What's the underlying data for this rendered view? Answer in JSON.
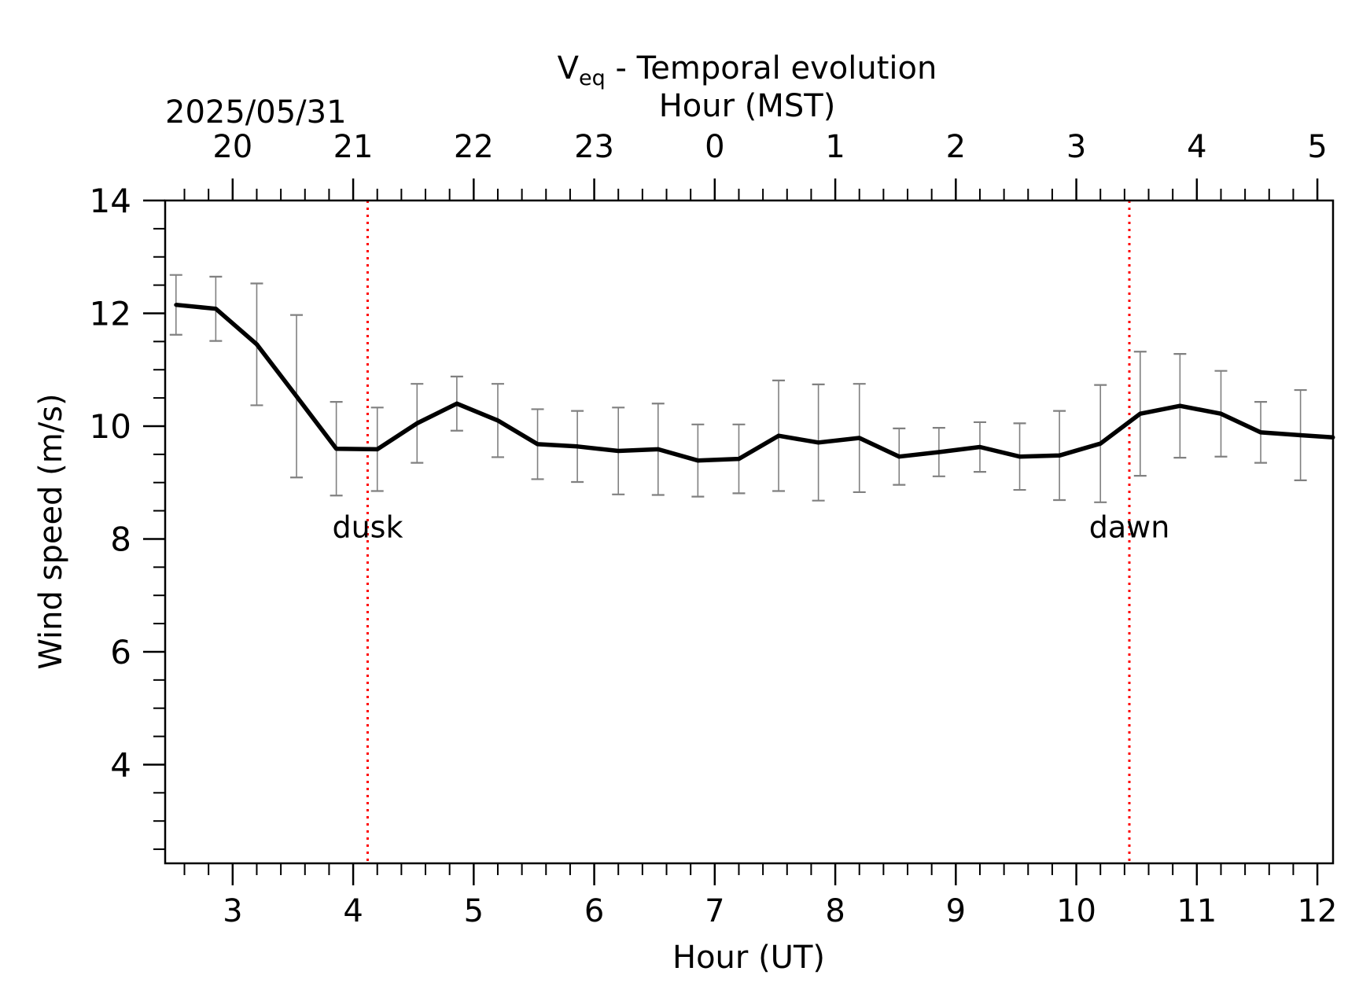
{
  "chart_data": {
    "type": "line",
    "title_main": "V",
    "title_sub": "eq",
    "title_rest": " - Temporal evolution",
    "top_axis_label": "Hour (MST)",
    "date_label": "2025/05/31",
    "xlabel": "Hour (UT)",
    "ylabel": "Wind speed (m/s)",
    "xlim": [
      2.44,
      12.13
    ],
    "ylim": [
      2.25,
      14.0
    ],
    "x_ticks": [
      3,
      4,
      5,
      6,
      7,
      8,
      9,
      10,
      11,
      12
    ],
    "x_tick_labels": [
      "3",
      "4",
      "5",
      "6",
      "7",
      "8",
      "9",
      "10",
      "11",
      "12"
    ],
    "y_ticks": [
      4,
      6,
      8,
      10,
      12,
      14
    ],
    "y_tick_labels": [
      "4",
      "6",
      "8",
      "10",
      "12",
      "14"
    ],
    "top_ticks_ut": [
      3,
      4,
      5,
      6,
      7,
      8,
      9,
      10,
      11,
      12
    ],
    "top_tick_labels": [
      "20",
      "21",
      "22",
      "23",
      "0",
      "1",
      "2",
      "3",
      "4",
      "5"
    ],
    "grid": false,
    "x": [
      2.53,
      2.86,
      3.2,
      3.53,
      3.86,
      4.2,
      4.53,
      4.86,
      5.2,
      5.53,
      5.86,
      6.2,
      6.53,
      6.86,
      7.2,
      7.53,
      7.86,
      8.2,
      8.53,
      8.86,
      9.2,
      9.53,
      9.86,
      10.2,
      10.53,
      10.86,
      11.2,
      11.53,
      11.86,
      12.13
    ],
    "series": [
      {
        "values": [
          12.15,
          12.08,
          11.45,
          10.53,
          9.6,
          9.59,
          10.05,
          10.4,
          10.1,
          9.68,
          9.64,
          9.56,
          9.59,
          9.39,
          9.42,
          9.83,
          9.71,
          9.79,
          9.46,
          9.54,
          9.63,
          9.46,
          9.48,
          9.69,
          10.22,
          10.36,
          10.22,
          9.89,
          9.84,
          9.8
        ],
        "errors": [
          0.53,
          0.57,
          1.08,
          1.44,
          0.83,
          0.74,
          0.7,
          0.48,
          0.65,
          0.62,
          0.63,
          0.77,
          0.81,
          0.64,
          0.61,
          0.98,
          1.03,
          0.96,
          0.5,
          0.43,
          0.44,
          0.59,
          0.79,
          1.04,
          1.1,
          0.92,
          0.76,
          0.54,
          0.8,
          0.0
        ],
        "color": "#000000",
        "error_color": "#808080"
      }
    ],
    "annotations": [
      {
        "text": "dusk",
        "x": 4.12,
        "y": 8.14,
        "color": "#ff0000"
      },
      {
        "text": "dawn",
        "x": 10.44,
        "y": 8.14,
        "color": "#ff0000"
      }
    ],
    "vlines": [
      {
        "x": 4.12,
        "color": "#ff0000",
        "style": "dotted"
      },
      {
        "x": 10.44,
        "color": "#ff0000",
        "style": "dotted"
      }
    ]
  }
}
